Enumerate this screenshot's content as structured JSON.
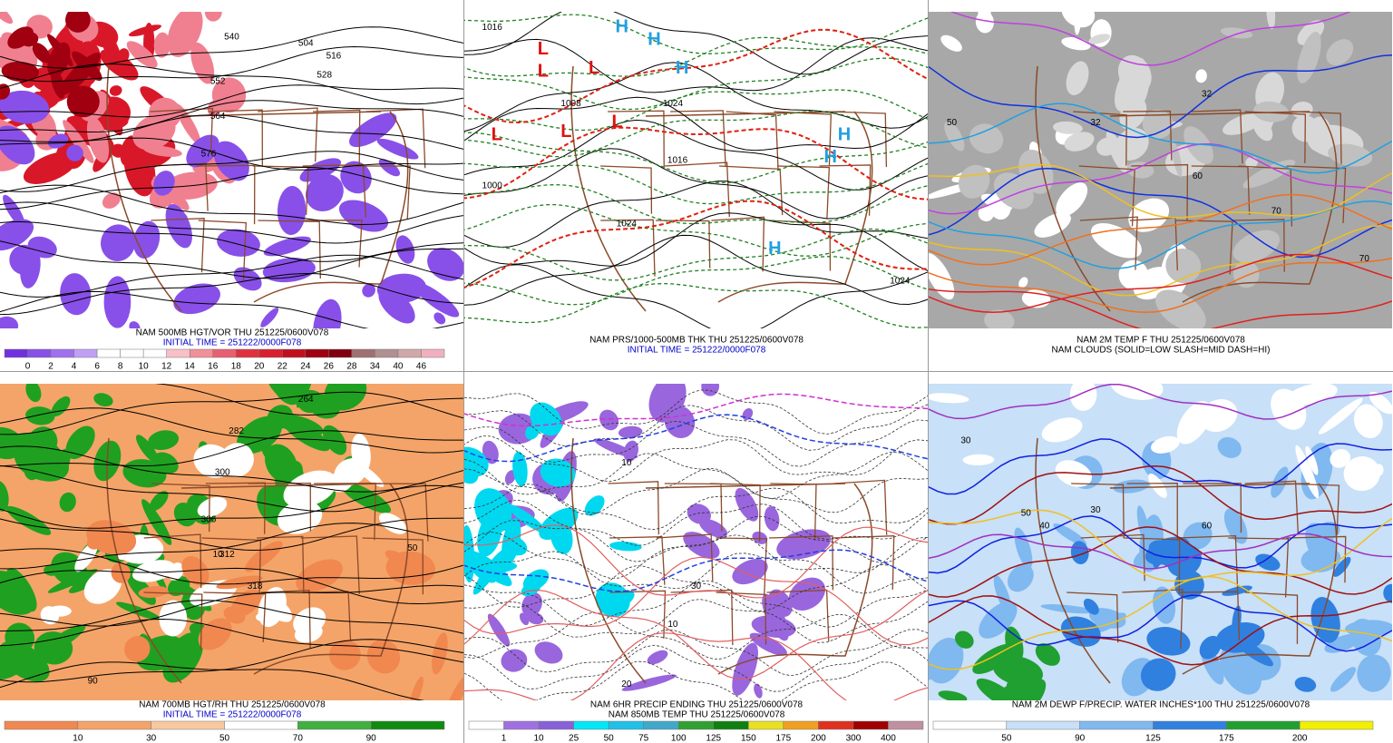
{
  "panels": [
    {
      "captions": [
        {
          "text": "NAM 500MB HGT/VOR THU 251225/0600V078",
          "color": "#000000"
        },
        {
          "text": "INITIAL TIME = 251222/0000F078",
          "color": "#0000c8"
        }
      ],
      "background": "#ffffff",
      "colorbar": {
        "colors": [
          "#7030e0",
          "#8850e8",
          "#a070f0",
          "#c0a0f4",
          "#ffffff",
          "#ffffff",
          "#ffffff",
          "#f8c0c8",
          "#f09098",
          "#e86070",
          "#e03040",
          "#d82030",
          "#c01020",
          "#a00010",
          "#800010",
          "#a07070",
          "#b09090",
          "#d0a8a8",
          "#f0b0c0"
        ],
        "labels": [
          0,
          2,
          4,
          6,
          8,
          10,
          12,
          14,
          16,
          18,
          20,
          22,
          24,
          26,
          28,
          34,
          40,
          46
        ]
      },
      "map_labels": [
        "504",
        "516",
        "528",
        "540",
        "552",
        "564",
        "576"
      ]
    },
    {
      "captions": [
        {
          "text": "NAM PRS/1000-500MB THK THU 251225/0600V078",
          "color": "#000000"
        },
        {
          "text": "INITIAL TIME = 251222/0000F078",
          "color": "#0000c8"
        }
      ],
      "background": "#ffffff",
      "map_labels": [
        "H",
        "H",
        "H",
        "L",
        "L",
        "L",
        "L",
        "L",
        "L",
        "H",
        "H",
        "H",
        "1016",
        "1008",
        "1024",
        "1016",
        "1000",
        "1024",
        "1024"
      ]
    },
    {
      "captions": [
        {
          "text": "NAM 2M TEMP F THU 251225/0600V078",
          "color": "#000000"
        },
        {
          "text": "NAM CLOUDS (SOLID=LOW SLASH=MID DASH=HI)",
          "color": "#000000"
        }
      ],
      "background": "#a8a8a8",
      "map_labels": [
        "32",
        "32",
        "50",
        "60",
        "70",
        "70"
      ]
    },
    {
      "captions": [
        {
          "text": "NAM 700MB HGT/RH THU 251225/0600V078",
          "color": "#000000"
        },
        {
          "text": "INITIAL TIME = 251222/0000F078",
          "color": "#0000c8"
        }
      ],
      "background": "#f4a468",
      "colorbar": {
        "colors": [
          "#f08850",
          "#f4a468",
          "#f8c8a0",
          "#ffffff",
          "#40b040",
          "#108a10"
        ],
        "labels": [
          10,
          30,
          50,
          70,
          90
        ]
      },
      "map_labels": [
        "264",
        "282",
        "300",
        "306",
        "312",
        "318",
        "10",
        "50",
        "90"
      ]
    },
    {
      "captions": [
        {
          "text": "NAM 6HR PRECIP ENDING THU 251225/0600V078",
          "color": "#000000"
        },
        {
          "text": "NAM 850MB TEMP THU 251225/0600V078",
          "color": "#000000"
        }
      ],
      "background": "#ffffff",
      "colorbar": {
        "colors": [
          "#ffffff",
          "#a070e0",
          "#8860d8",
          "#00e8f8",
          "#20c0e8",
          "#40a8c8",
          "#30a030",
          "#108010",
          "#e8e020",
          "#f0a020",
          "#e03020",
          "#a00000",
          "#c090a0"
        ],
        "labels": [
          1,
          10,
          25,
          50,
          75,
          100,
          125,
          150,
          175,
          200,
          300,
          400
        ]
      },
      "map_labels": [
        "10",
        "10",
        "20",
        "30"
      ]
    },
    {
      "captions": [
        {
          "text": "NAM 2M DEWP F/PRECIP. WATER INCHES*100 THU 251225/0600V078",
          "color": "#000000"
        }
      ],
      "background": "#c8e0f8",
      "colorbar": {
        "colors": [
          "#ffffff",
          "#c8e0f8",
          "#80b8f0",
          "#3080e0",
          "#20a030",
          "#f0f000"
        ],
        "labels": [
          50,
          90,
          125,
          175,
          200
        ]
      },
      "map_labels": [
        "30",
        "30",
        "40",
        "50",
        "60"
      ]
    }
  ]
}
